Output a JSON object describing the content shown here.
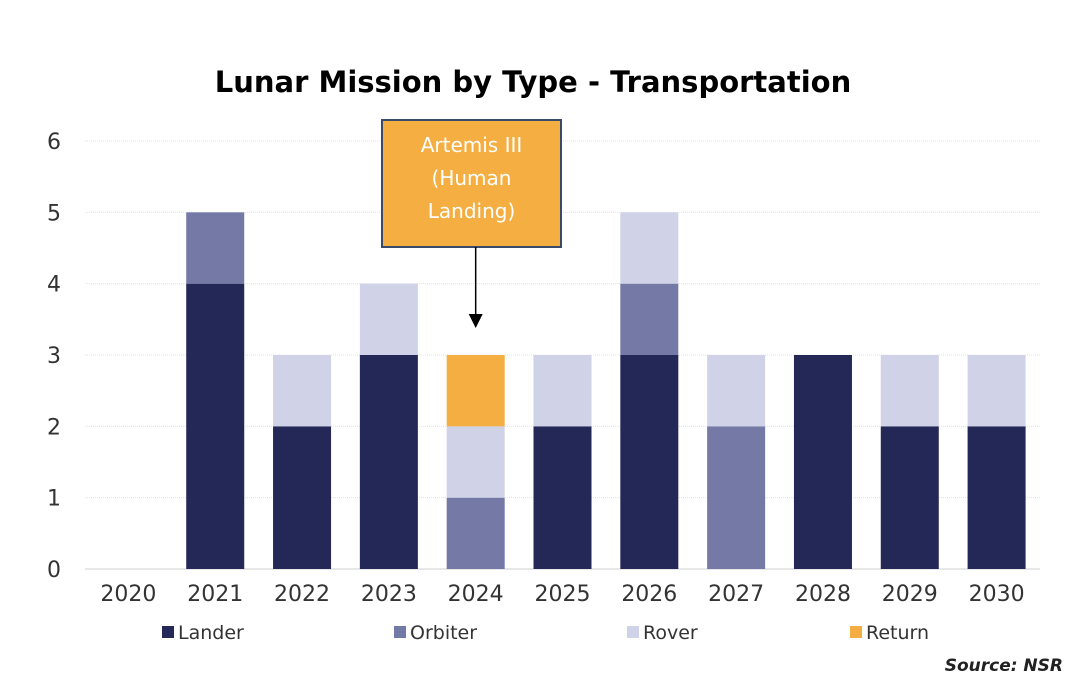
{
  "chart_data": {
    "type": "bar",
    "stacked": true,
    "title": "Lunar Mission by Type - Transportation",
    "xlabel": "",
    "ylabel": "",
    "categories": [
      "2020",
      "2021",
      "2022",
      "2023",
      "2024",
      "2025",
      "2026",
      "2027",
      "2028",
      "2029",
      "2030"
    ],
    "ylim": [
      0,
      6
    ],
    "yticks": [
      "0",
      "1",
      "2",
      "3",
      "4",
      "5",
      "6"
    ],
    "grid": true,
    "legend_position": "bottom",
    "series": [
      {
        "name": "Lander",
        "color": "#232856",
        "values": [
          0,
          4,
          2,
          3,
          0,
          2,
          3,
          0,
          3,
          2,
          2
        ]
      },
      {
        "name": "Orbiter",
        "color": "#7479a6",
        "values": [
          0,
          1,
          0,
          0,
          1,
          0,
          1,
          2,
          0,
          0,
          0
        ]
      },
      {
        "name": "Rover",
        "color": "#d0d2e8",
        "values": [
          0,
          0,
          1,
          1,
          1,
          1,
          1,
          1,
          0,
          1,
          1
        ]
      },
      {
        "name": "Return",
        "color": "#f4ae41",
        "values": [
          0,
          0,
          0,
          0,
          1,
          0,
          0,
          0,
          0,
          0,
          0
        ]
      }
    ],
    "annotation": {
      "lines": [
        "Artemis III",
        "(Human",
        "Landing)"
      ],
      "target_category": "2024",
      "color": "#f4ae41",
      "border_color": "#3a4a6b"
    },
    "source": "Source: NSR"
  }
}
